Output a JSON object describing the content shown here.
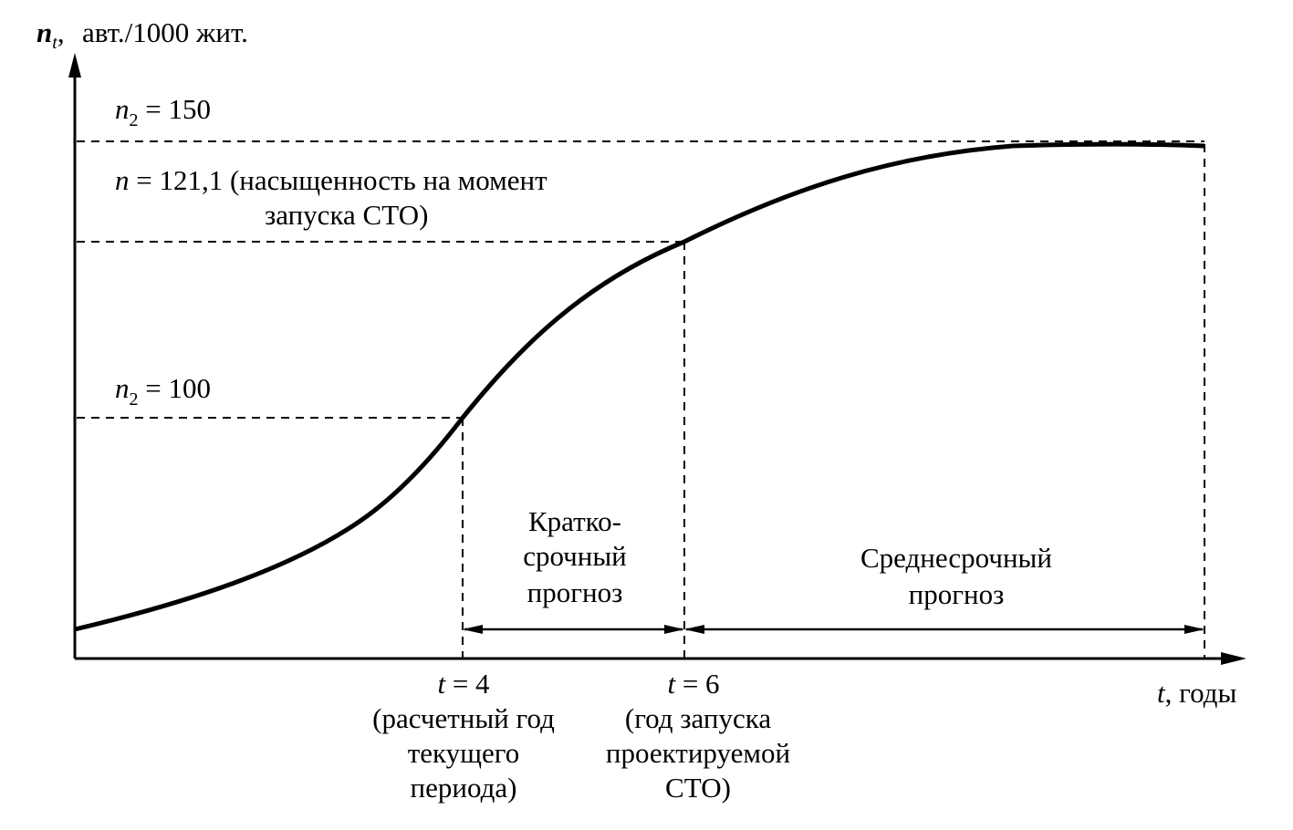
{
  "y_axis": {
    "symbol": "n",
    "symbol_sub": "t",
    "comma": ",",
    "unit": "авт./1000 жит."
  },
  "x_axis": {
    "symbol": "t",
    "unit": ", годы"
  },
  "levels": {
    "top": {
      "sym": "n",
      "sub": "2",
      "rest": " = 150"
    },
    "launch": {
      "sym": "n",
      "line1_rest": " = 121,1 (насыщенность на момент",
      "line2": "запуска СТО)"
    },
    "current": {
      "sym": "n",
      "sub": "2",
      "rest": " = 100"
    }
  },
  "periods": {
    "short": {
      "line1": "Кратко-",
      "line2": "срочный",
      "line3": "прогноз"
    },
    "medium": {
      "line1": "Среднесрочный",
      "line2": "прогноз"
    }
  },
  "t_marks": {
    "t4": {
      "sym": "t",
      "rest": " = 4",
      "line2": "(расчетный год",
      "line3": "текущего",
      "line4": "периода)"
    },
    "t6": {
      "sym": "t",
      "rest": " = 6",
      "line2": "(год запуска",
      "line3": "проектируемой",
      "line4": "СТО)"
    }
  },
  "chart_data": {
    "type": "line",
    "title": "",
    "xlabel": "t, годы",
    "ylabel": "n_t, авт./1000 жит.",
    "series": [
      {
        "x": [
          0,
          1,
          2,
          3,
          4,
          5,
          6,
          7,
          8,
          9,
          10,
          11,
          12.3
        ],
        "values": [
          61,
          66,
          73,
          84,
          100,
          114,
          121.1,
          130,
          138,
          144,
          148,
          150,
          150
        ]
      }
    ],
    "reference_lines": [
      {
        "y": 150,
        "label": "n2 = 150"
      },
      {
        "y": 121.1,
        "label": "n = 121,1 (насыщенность на момент запуска СТО)"
      },
      {
        "y": 100,
        "label": "n2 = 100"
      },
      {
        "x": 4,
        "label": "t = 4"
      },
      {
        "x": 6,
        "label": "t = 6"
      }
    ],
    "intervals": [
      {
        "from": 4,
        "to": 6,
        "label": "Краткосрочный прогноз"
      },
      {
        "from": 6,
        "to": 12.3,
        "label": "Среднесрочный прогноз"
      }
    ]
  }
}
